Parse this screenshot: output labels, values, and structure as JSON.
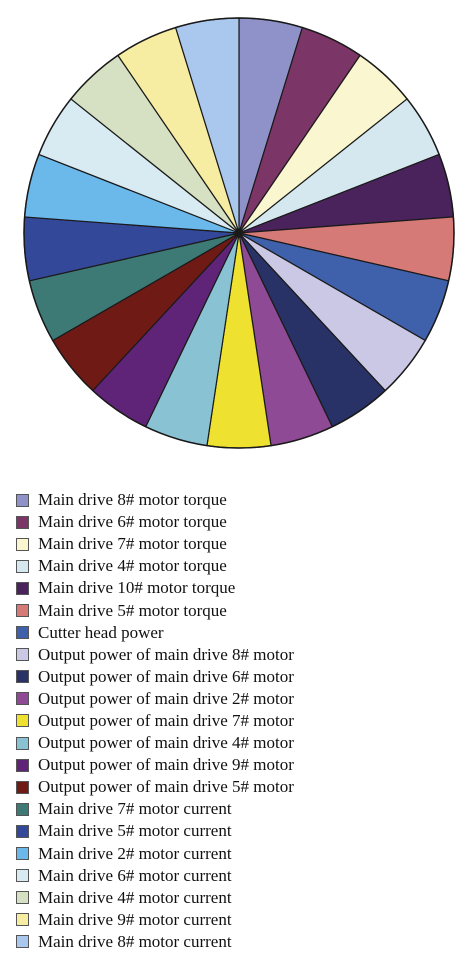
{
  "chart_data": {
    "type": "pie",
    "title": "",
    "categories": [
      "Main drive 8# motor torque",
      "Main drive 6# motor torque",
      "Main drive 7# motor torque",
      "Main drive 4# motor torque",
      "Main drive 10# motor torque",
      "Main drive 5# motor torque",
      "Cutter head power",
      "Output power of main drive 8# motor",
      "Output power of main drive 6# motor",
      "Output power of main drive 2# motor",
      "Output power of main drive 7# motor",
      "Output power of main drive 4# motor",
      "Output power of main drive 9# motor",
      "Output power of main drive 5# motor",
      "Main drive 7# motor current",
      "Main drive 5# motor current",
      "Main drive 2# motor current",
      "Main drive 6# motor current",
      "Main drive 4# motor current",
      "Main drive 9# motor current",
      "Main drive 8# motor current"
    ],
    "values": [
      1,
      1,
      1,
      1,
      1,
      1,
      1,
      1,
      1,
      1,
      1,
      1,
      1,
      1,
      1,
      1,
      1,
      1,
      1,
      1,
      1
    ],
    "colors": [
      "#8f91c9",
      "#7b3566",
      "#faf6cf",
      "#d5e8ef",
      "#4a225c",
      "#d67a77",
      "#3f61ab",
      "#cbc8e6",
      "#283266",
      "#8f4a96",
      "#efe12f",
      "#89c2d3",
      "#5f2377",
      "#6f1a14",
      "#3d7a76",
      "#34489a",
      "#6bb8ea",
      "#d8eaf2",
      "#d6e1c3",
      "#f6eca2",
      "#aac8ee"
    ],
    "start_angle": "12 o'clock",
    "direction": "clockwise",
    "legend_position": "bottom"
  }
}
